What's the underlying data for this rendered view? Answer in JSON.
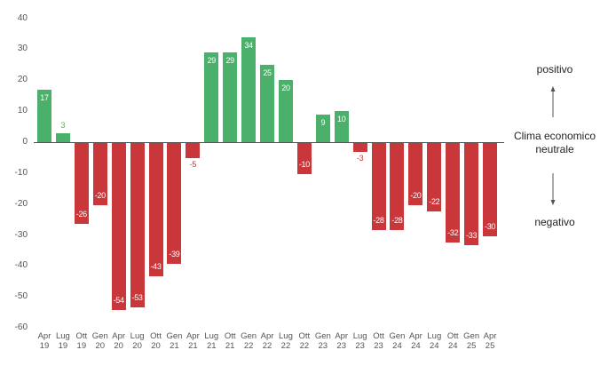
{
  "chart_data": {
    "type": "bar",
    "title": "",
    "xlabel": "",
    "ylabel": "",
    "ylim": [
      -60,
      40
    ],
    "yticks": [
      40,
      30,
      20,
      10,
      0,
      -10,
      -20,
      -30,
      -40,
      -50,
      -60
    ],
    "grid": false,
    "categories": [
      "Apr 19",
      "Lug 19",
      "Ott 19",
      "Gen 20",
      "Apr 20",
      "Lug 20",
      "Ott 20",
      "Gen 21",
      "Apr 21",
      "Lug 21",
      "Ott 21",
      "Gen 22",
      "Apr 22",
      "Lug 22",
      "Ott 22",
      "Gen 23",
      "Apr 23",
      "Lug 23",
      "Ott 23",
      "Gen 24",
      "Apr 24",
      "Lug 24",
      "Ott 24",
      "Gen 25",
      "Apr 25"
    ],
    "category_parts": [
      [
        "Apr",
        "19"
      ],
      [
        "Lug",
        "19"
      ],
      [
        "Ott",
        "19"
      ],
      [
        "Gen",
        "20"
      ],
      [
        "Apr",
        "20"
      ],
      [
        "Lug",
        "20"
      ],
      [
        "Ott",
        "20"
      ],
      [
        "Gen",
        "21"
      ],
      [
        "Apr",
        "21"
      ],
      [
        "Lug",
        "21"
      ],
      [
        "Ott",
        "21"
      ],
      [
        "Gen",
        "22"
      ],
      [
        "Apr",
        "22"
      ],
      [
        "Lug",
        "22"
      ],
      [
        "Ott",
        "22"
      ],
      [
        "Gen",
        "23"
      ],
      [
        "Apr",
        "23"
      ],
      [
        "Lug",
        "23"
      ],
      [
        "Ott",
        "23"
      ],
      [
        "Gen",
        "24"
      ],
      [
        "Apr",
        "24"
      ],
      [
        "Lug",
        "24"
      ],
      [
        "Ott",
        "24"
      ],
      [
        "Gen",
        "25"
      ],
      [
        "Apr",
        "25"
      ]
    ],
    "values": [
      17,
      3,
      -26,
      -20,
      -54,
      -53,
      -43,
      -39,
      -5,
      29,
      29,
      34,
      25,
      20,
      -10,
      9,
      10,
      -3,
      -28,
      -28,
      -20,
      -22,
      -32,
      -33,
      -30
    ],
    "colors": {
      "positive": "#4bb06a",
      "negative": "#c9373b"
    },
    "annotations": {
      "top": "positivo",
      "middle_line1": "Clima economico",
      "middle_line2": "neutrale",
      "bottom": "negativo"
    }
  }
}
